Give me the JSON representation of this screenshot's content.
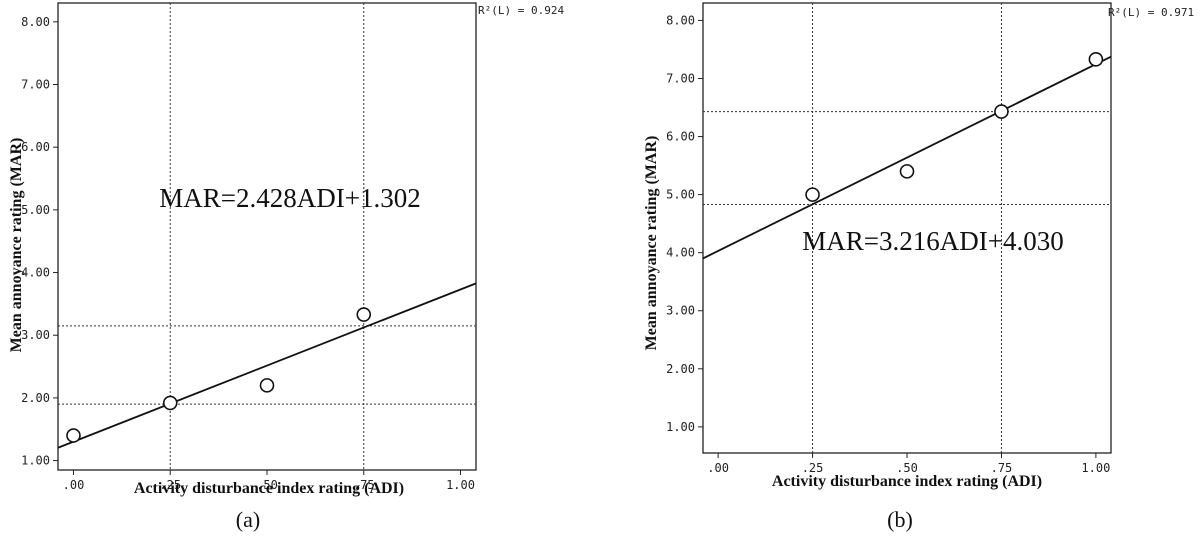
{
  "chart_data": [
    {
      "type": "scatter",
      "panel_label": "(a)",
      "xlabel": "Activity disturbance index rating (ADI)",
      "ylabel": "Mean annoyance rating (MAR)",
      "xlim": [
        -0.04,
        1.04
      ],
      "ylim": [
        0.85,
        8.3
      ],
      "xticks": [
        ".00",
        ".25",
        ".50",
        ".75",
        "1.00"
      ],
      "xtick_values": [
        0,
        0.25,
        0.5,
        0.75,
        1.0
      ],
      "yticks": [
        "1.00",
        "2.00",
        "3.00",
        "4.00",
        "5.00",
        "6.00",
        "7.00",
        "8.00"
      ],
      "ytick_values": [
        1,
        2,
        3,
        4,
        5,
        6,
        7,
        8
      ],
      "points": [
        {
          "x": 0.0,
          "y": 1.4
        },
        {
          "x": 0.25,
          "y": 1.92
        },
        {
          "x": 0.5,
          "y": 2.2
        },
        {
          "x": 0.75,
          "y": 3.33
        }
      ],
      "fit": {
        "slope": 2.428,
        "intercept": 1.302
      },
      "equation": "MAR=2.428ADI+1.302",
      "r_squared": "R²(L) = 0.924",
      "ref_vlines": [
        0.25,
        0.75
      ],
      "ref_hlines": [
        1.9,
        3.15
      ],
      "grid": false,
      "legend": "none"
    },
    {
      "type": "scatter",
      "panel_label": "(b)",
      "xlabel": "Activity disturbance index rating (ADI)",
      "ylabel": "Mean annoyance rating (MAR)",
      "xlim": [
        -0.04,
        1.04
      ],
      "ylim": [
        0.55,
        8.3
      ],
      "xticks": [
        ".00",
        ".25",
        ".50",
        ".75",
        "1.00"
      ],
      "xtick_values": [
        0,
        0.25,
        0.5,
        0.75,
        1.0
      ],
      "yticks": [
        "1.00",
        "2.00",
        "3.00",
        "4.00",
        "5.00",
        "6.00",
        "7.00",
        "8.00"
      ],
      "ytick_values": [
        1,
        2,
        3,
        4,
        5,
        6,
        7,
        8
      ],
      "points": [
        {
          "x": 0.25,
          "y": 5.0
        },
        {
          "x": 0.5,
          "y": 5.4
        },
        {
          "x": 0.75,
          "y": 6.43
        },
        {
          "x": 1.0,
          "y": 7.33
        }
      ],
      "fit": {
        "slope": 3.216,
        "intercept": 4.03
      },
      "equation": "MAR=3.216ADI+4.030",
      "r_squared": "R²(L) = 0.971",
      "ref_vlines": [
        0.25,
        0.75
      ],
      "ref_hlines": [
        4.83,
        6.43
      ],
      "grid": false,
      "legend": "none"
    }
  ]
}
